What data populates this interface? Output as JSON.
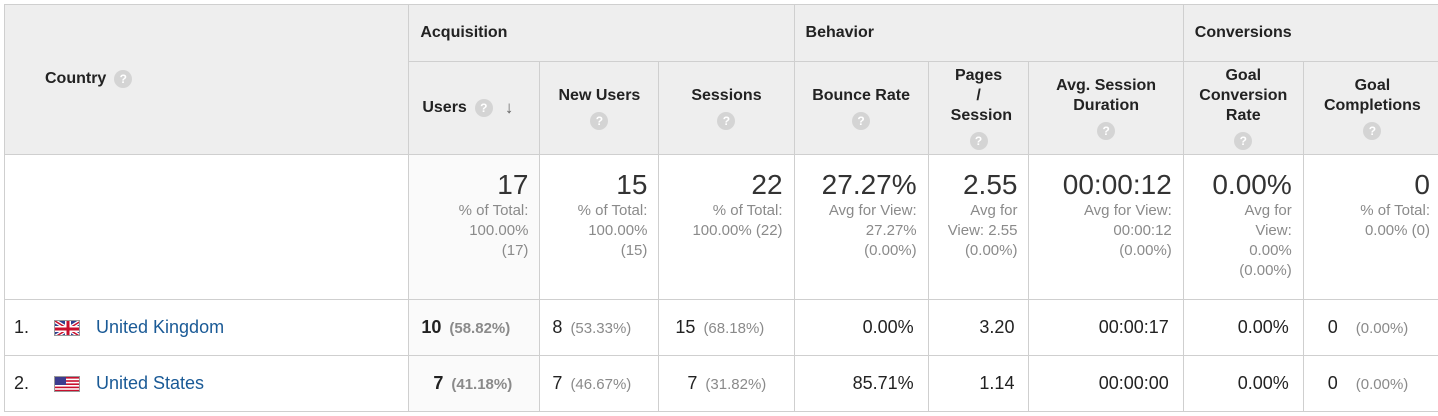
{
  "headers": {
    "country": "Country",
    "groups": [
      "Acquisition",
      "Behavior",
      "Conversions"
    ],
    "columns": [
      {
        "label": "Users"
      },
      {
        "label": "New Users"
      },
      {
        "label": "Sessions"
      },
      {
        "label": "Bounce Rate"
      },
      {
        "label": "Pages / Session"
      },
      {
        "label": "Avg. Session Duration"
      },
      {
        "label": "Goal Conversion Rate"
      },
      {
        "label": "Goal Completions"
      }
    ],
    "help_glyph": "?",
    "sort_glyph": "↓"
  },
  "totals": [
    {
      "value": "17",
      "note": "% of Total: 100.00% (17)"
    },
    {
      "value": "15",
      "note": "% of Total: 100.00% (15)"
    },
    {
      "value": "22",
      "note": "% of Total: 100.00% (22)"
    },
    {
      "value": "27.27%",
      "note": "Avg for View: 27.27% (0.00%)"
    },
    {
      "value": "2.55",
      "note": "Avg for View: 2.55 (0.00%)"
    },
    {
      "value": "00:00:12",
      "note": "Avg for View: 00:00:12 (0.00%)"
    },
    {
      "value": "0.00%",
      "note": "Avg for View: 0.00% (0.00%)"
    },
    {
      "value": "0",
      "note": "% of Total: 0.00% (0)"
    }
  ],
  "rows": [
    {
      "index": "1.",
      "country": "United Kingdom",
      "flag_icon": "uk-flag-icon",
      "users": "10",
      "users_pct": "(58.82%)",
      "new_users": "8",
      "new_users_pct": "(53.33%)",
      "sessions": "15",
      "sessions_pct": "(68.18%)",
      "bounce_rate": "0.00%",
      "pages_session": "3.20",
      "avg_duration": "00:00:17",
      "goal_rate": "0.00%",
      "goal_completions": "0",
      "goal_completions_pct": "(0.00%)"
    },
    {
      "index": "2.",
      "country": "United States",
      "flag_icon": "us-flag-icon",
      "users": "7",
      "users_pct": "(41.18%)",
      "new_users": "7",
      "new_users_pct": "(46.67%)",
      "sessions": "7",
      "sessions_pct": "(31.82%)",
      "bounce_rate": "85.71%",
      "pages_session": "1.14",
      "avg_duration": "00:00:00",
      "goal_rate": "0.00%",
      "goal_completions": "0",
      "goal_completions_pct": "(0.00%)"
    }
  ],
  "colors": {
    "link": "#1a5a96",
    "header_bg": "#eeeeee",
    "border": "#cfcfcf",
    "muted": "#8a8a8a"
  }
}
